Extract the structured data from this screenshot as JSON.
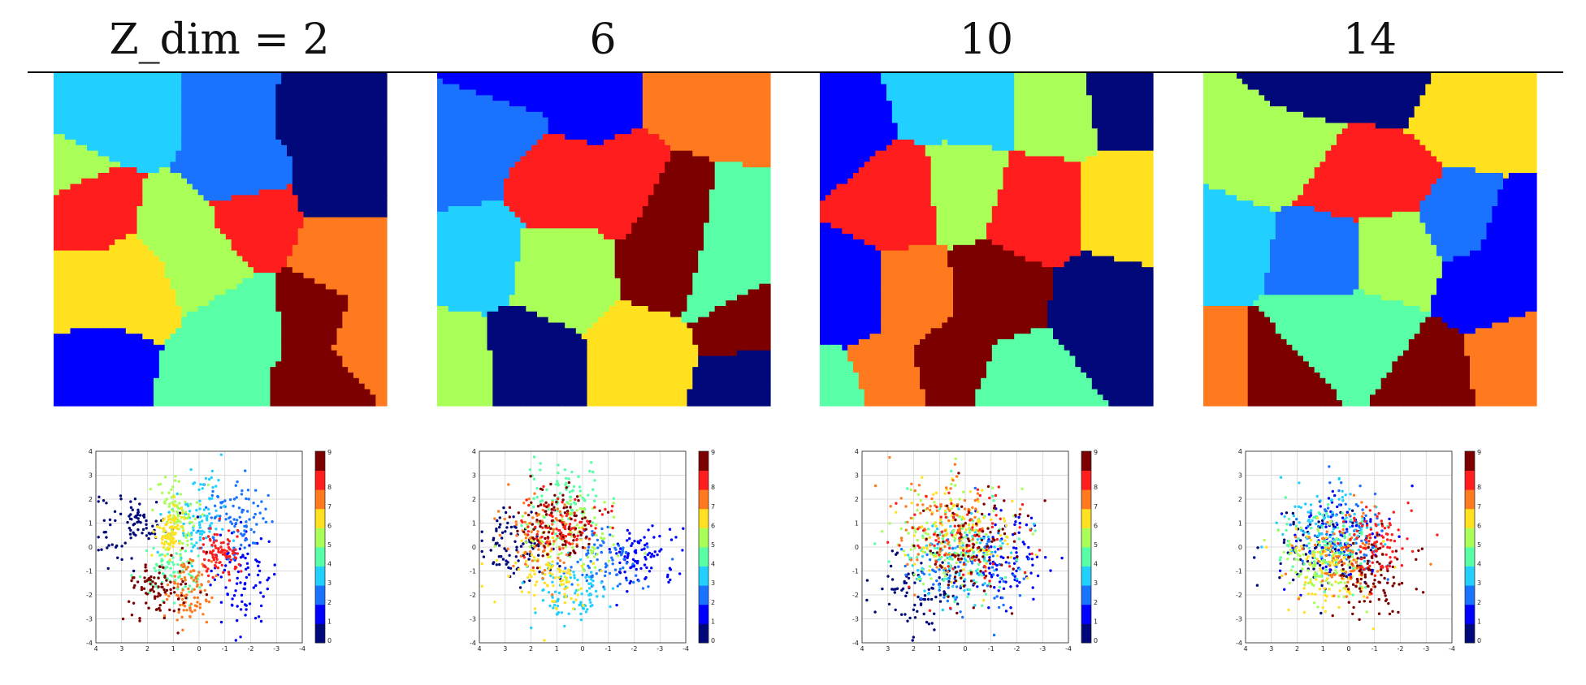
{
  "figure": {
    "column_titles": [
      "Z_dim = 2",
      "6",
      "10",
      "14"
    ]
  },
  "colormap": {
    "name": "jet",
    "classes": [
      "0",
      "1",
      "2",
      "3",
      "4",
      "5",
      "6",
      "7",
      "8",
      "9"
    ],
    "colors": [
      "#00087a",
      "#0000ff",
      "#1a73ff",
      "#22d0ff",
      "#58ffa6",
      "#a9ff57",
      "#ffe11f",
      "#ff7a1e",
      "#ff1d1d",
      "#7d0000"
    ]
  },
  "chart_data": [
    {
      "type": "scatter",
      "panel": "Z_dim = 2",
      "xlim": [
        4,
        -4
      ],
      "ylim": [
        -4,
        4
      ],
      "xticks": [
        "4",
        "3",
        "2",
        "1",
        "0",
        "-1",
        "-2",
        "-3",
        "-4"
      ],
      "yticks": [
        "4",
        "3",
        "2",
        "1",
        "0",
        "-1",
        "-2",
        "-3",
        "-4"
      ],
      "colorbar_ticks": [
        "0",
        "1",
        "2",
        "3",
        "4",
        "5",
        "6",
        "7",
        "8",
        "9"
      ],
      "grid": true,
      "clusters": [
        {
          "class": 0,
          "cx": 2.5,
          "cy": 1.0,
          "sx": 0.7,
          "sy": 0.7
        },
        {
          "class": 1,
          "cx": -1.7,
          "cy": -1.2,
          "sx": 0.6,
          "sy": 1.0
        },
        {
          "class": 2,
          "cx": -1.4,
          "cy": 1.1,
          "sx": 0.7,
          "sy": 0.7
        },
        {
          "class": 3,
          "cx": 0.1,
          "cy": 1.4,
          "sx": 0.5,
          "sy": 0.9
        },
        {
          "class": 4,
          "cx": 1.0,
          "cy": -1.1,
          "sx": 0.6,
          "sy": 0.6
        },
        {
          "class": 5,
          "cx": 0.8,
          "cy": 1.4,
          "sx": 0.4,
          "sy": 0.9
        },
        {
          "class": 6,
          "cx": 1.1,
          "cy": 0.7,
          "sx": 0.25,
          "sy": 0.5
        },
        {
          "class": 7,
          "cx": 0.4,
          "cy": -1.8,
          "sx": 0.5,
          "sy": 0.8
        },
        {
          "class": 8,
          "cx": -0.8,
          "cy": -0.4,
          "sx": 0.4,
          "sy": 0.5
        },
        {
          "class": 9,
          "cx": 1.6,
          "cy": -1.8,
          "sx": 0.6,
          "sy": 0.6
        }
      ]
    },
    {
      "type": "scatter",
      "panel": "6",
      "xlim": [
        4,
        -4
      ],
      "ylim": [
        -4,
        4
      ],
      "xticks": [
        "4",
        "3",
        "2",
        "1",
        "0",
        "-1",
        "-2",
        "-3",
        "-4"
      ],
      "yticks": [
        "4",
        "3",
        "2",
        "1",
        "0",
        "-1",
        "-2",
        "-3",
        "-4"
      ],
      "colorbar_ticks": [
        "0",
        "1",
        "2",
        "3",
        "4",
        "5",
        "6",
        "7",
        "8",
        "9"
      ],
      "grid": true,
      "clusters": [
        {
          "class": 0,
          "cx": 2.6,
          "cy": 0.0,
          "sx": 0.8,
          "sy": 0.7
        },
        {
          "class": 1,
          "cx": -2.2,
          "cy": -0.3,
          "sx": 0.7,
          "sy": 0.6
        },
        {
          "class": 2,
          "cx": -1.0,
          "cy": -0.6,
          "sx": 0.8,
          "sy": 0.7
        },
        {
          "class": 3,
          "cx": 0.4,
          "cy": -1.9,
          "sx": 0.8,
          "sy": 0.7
        },
        {
          "class": 4,
          "cx": 0.8,
          "cy": 2.0,
          "sx": 0.8,
          "sy": 0.7
        },
        {
          "class": 5,
          "cx": 0.4,
          "cy": 0.4,
          "sx": 1.0,
          "sy": 1.0
        },
        {
          "class": 6,
          "cx": 1.2,
          "cy": -1.2,
          "sx": 0.8,
          "sy": 0.8
        },
        {
          "class": 7,
          "cx": 1.6,
          "cy": 0.6,
          "sx": 0.8,
          "sy": 0.8
        },
        {
          "class": 8,
          "cx": 0.8,
          "cy": 0.9,
          "sx": 0.8,
          "sy": 0.6
        },
        {
          "class": 9,
          "cx": 1.0,
          "cy": 1.1,
          "sx": 0.8,
          "sy": 0.7
        }
      ]
    },
    {
      "type": "scatter",
      "panel": "10",
      "xlim": [
        4,
        -4
      ],
      "ylim": [
        -4,
        4
      ],
      "xticks": [
        "4",
        "3",
        "2",
        "1",
        "0",
        "-1",
        "-2",
        "-3",
        "-4"
      ],
      "yticks": [
        "4",
        "3",
        "2",
        "1",
        "0",
        "-1",
        "-2",
        "-3",
        "-4"
      ],
      "colorbar_ticks": [
        "0",
        "1",
        "2",
        "3",
        "4",
        "5",
        "6",
        "7",
        "8",
        "9"
      ],
      "grid": true,
      "clusters": [
        {
          "class": 0,
          "cx": 1.8,
          "cy": -1.8,
          "sx": 0.9,
          "sy": 0.8
        },
        {
          "class": 1,
          "cx": -1.6,
          "cy": -0.5,
          "sx": 0.8,
          "sy": 1.0
        },
        {
          "class": 2,
          "cx": 0.2,
          "cy": -1.0,
          "sx": 1.1,
          "sy": 1.0
        },
        {
          "class": 3,
          "cx": 0.3,
          "cy": -0.4,
          "sx": 1.1,
          "sy": 1.0
        },
        {
          "class": 4,
          "cx": 0.3,
          "cy": 0.0,
          "sx": 1.1,
          "sy": 1.0
        },
        {
          "class": 5,
          "cx": 0.6,
          "cy": 0.4,
          "sx": 1.1,
          "sy": 1.0
        },
        {
          "class": 6,
          "cx": 0.0,
          "cy": 0.6,
          "sx": 1.1,
          "sy": 1.0
        },
        {
          "class": 7,
          "cx": 0.7,
          "cy": 1.0,
          "sx": 1.0,
          "sy": 1.0
        },
        {
          "class": 8,
          "cx": 0.0,
          "cy": 0.3,
          "sx": 1.1,
          "sy": 1.1
        },
        {
          "class": 9,
          "cx": -0.3,
          "cy": 0.0,
          "sx": 1.0,
          "sy": 1.1
        }
      ]
    },
    {
      "type": "scatter",
      "panel": "14",
      "xlim": [
        4,
        -4
      ],
      "ylim": [
        -4,
        4
      ],
      "xticks": [
        "4",
        "3",
        "2",
        "1",
        "0",
        "-1",
        "-2",
        "-3",
        "-4"
      ],
      "yticks": [
        "4",
        "3",
        "2",
        "1",
        "0",
        "-1",
        "-2",
        "-3",
        "-4"
      ],
      "colorbar_ticks": [
        "0",
        "1",
        "2",
        "3",
        "4",
        "5",
        "6",
        "7",
        "8",
        "9"
      ],
      "grid": true,
      "clusters": [
        {
          "class": 0,
          "cx": 1.2,
          "cy": -0.2,
          "sx": 1.0,
          "sy": 1.0
        },
        {
          "class": 1,
          "cx": 0.4,
          "cy": 0.4,
          "sx": 1.0,
          "sy": 1.0
        },
        {
          "class": 2,
          "cx": 0.2,
          "cy": 0.7,
          "sx": 1.0,
          "sy": 1.0
        },
        {
          "class": 3,
          "cx": 0.8,
          "cy": 1.0,
          "sx": 1.0,
          "sy": 0.9
        },
        {
          "class": 4,
          "cx": 0.6,
          "cy": 0.0,
          "sx": 0.9,
          "sy": 0.9
        },
        {
          "class": 5,
          "cx": 1.0,
          "cy": -0.8,
          "sx": 0.9,
          "sy": 0.8
        },
        {
          "class": 6,
          "cx": 0.8,
          "cy": -0.9,
          "sx": 0.9,
          "sy": 0.8
        },
        {
          "class": 7,
          "cx": 0.0,
          "cy": -0.4,
          "sx": 1.0,
          "sy": 0.9
        },
        {
          "class": 8,
          "cx": -1.2,
          "cy": 0.2,
          "sx": 0.7,
          "sy": 0.8
        },
        {
          "class": 9,
          "cx": -1.0,
          "cy": -1.2,
          "sx": 0.8,
          "sy": 0.8
        }
      ]
    }
  ],
  "decision_maps": [
    {
      "panel": "Z_dim = 2",
      "regions": [
        {
          "class": 3,
          "seeds": [
            [
              0.25,
              0.1
            ],
            [
              0.08,
              0.15
            ]
          ]
        },
        {
          "class": 2,
          "seeds": [
            [
              0.52,
              0.1
            ],
            [
              0.55,
              0.3
            ]
          ]
        },
        {
          "class": 0,
          "seeds": [
            [
              0.82,
              0.12
            ],
            [
              0.88,
              0.32
            ]
          ]
        },
        {
          "class": 5,
          "seeds": [
            [
              0.03,
              0.25
            ],
            [
              0.45,
              0.55
            ],
            [
              0.4,
              0.48
            ]
          ]
        },
        {
          "class": 8,
          "seeds": [
            [
              0.1,
              0.42
            ],
            [
              0.58,
              0.44
            ]
          ]
        },
        {
          "class": 6,
          "seeds": [
            [
              0.22,
              0.63
            ],
            [
              0.1,
              0.66
            ]
          ]
        },
        {
          "class": 7,
          "seeds": [
            [
              0.88,
              0.55
            ],
            [
              0.93,
              0.8
            ]
          ]
        },
        {
          "class": 9,
          "seeds": [
            [
              0.78,
              0.75
            ],
            [
              0.79,
              0.92
            ]
          ]
        },
        {
          "class": 4,
          "seeds": [
            [
              0.58,
              0.77
            ],
            [
              0.5,
              0.95
            ]
          ]
        },
        {
          "class": 1,
          "seeds": [
            [
              0.12,
              0.88
            ]
          ]
        }
      ]
    },
    {
      "panel": "6",
      "regions": [
        {
          "class": 1,
          "seeds": [
            [
              0.22,
              0.06
            ],
            [
              0.45,
              0.08
            ]
          ]
        },
        {
          "class": 2,
          "seeds": [
            [
              0.05,
              0.25
            ],
            [
              0.2,
              0.12
            ]
          ]
        },
        {
          "class": 7,
          "seeds": [
            [
              0.92,
              0.1
            ],
            [
              0.78,
              0.06
            ]
          ]
        },
        {
          "class": 8,
          "seeds": [
            [
              0.38,
              0.32
            ],
            [
              0.55,
              0.33
            ]
          ]
        },
        {
          "class": 9,
          "seeds": [
            [
              0.72,
              0.42
            ],
            [
              0.7,
              0.58
            ],
            [
              0.92,
              0.75
            ]
          ]
        },
        {
          "class": 4,
          "seeds": [
            [
              0.9,
              0.45
            ],
            [
              0.85,
              0.62
            ]
          ]
        },
        {
          "class": 3,
          "seeds": [
            [
              0.1,
              0.55
            ]
          ]
        },
        {
          "class": 5,
          "seeds": [
            [
              0.38,
              0.6
            ],
            [
              0.05,
              0.88
            ]
          ]
        },
        {
          "class": 0,
          "seeds": [
            [
              0.27,
              0.87
            ],
            [
              0.93,
              0.93
            ]
          ]
        },
        {
          "class": 6,
          "seeds": [
            [
              0.62,
              0.85
            ]
          ]
        }
      ]
    },
    {
      "panel": "10",
      "regions": [
        {
          "class": 1,
          "seeds": [
            [
              0.08,
              0.15
            ],
            [
              0.08,
              0.7
            ]
          ]
        },
        {
          "class": 3,
          "seeds": [
            [
              0.45,
              0.1
            ],
            [
              0.35,
              0.08
            ]
          ]
        },
        {
          "class": 5,
          "seeds": [
            [
              0.42,
              0.33
            ],
            [
              0.7,
              0.1
            ]
          ]
        },
        {
          "class": 0,
          "seeds": [
            [
              0.92,
              0.06
            ],
            [
              0.86,
              0.72
            ]
          ]
        },
        {
          "class": 8,
          "seeds": [
            [
              0.65,
              0.4
            ],
            [
              0.25,
              0.35
            ]
          ]
        },
        {
          "class": 6,
          "seeds": [
            [
              0.93,
              0.4
            ]
          ]
        },
        {
          "class": 7,
          "seeds": [
            [
              0.28,
              0.7
            ],
            [
              0.18,
              0.9
            ]
          ]
        },
        {
          "class": 9,
          "seeds": [
            [
              0.52,
              0.68
            ],
            [
              0.4,
              0.85
            ]
          ]
        },
        {
          "class": 4,
          "seeds": [
            [
              0.6,
              0.92
            ],
            [
              0.05,
              0.95
            ]
          ]
        }
      ]
    },
    {
      "panel": "14",
      "regions": [
        {
          "class": 0,
          "seeds": [
            [
              0.35,
              0.04
            ],
            [
              0.6,
              0.04
            ]
          ]
        },
        {
          "class": 6,
          "seeds": [
            [
              0.85,
              0.13
            ],
            [
              0.72,
              0.1
            ]
          ]
        },
        {
          "class": 5,
          "seeds": [
            [
              0.15,
              0.25
            ],
            [
              0.3,
              0.22
            ]
          ]
        },
        {
          "class": 8,
          "seeds": [
            [
              0.55,
              0.3
            ],
            [
              0.42,
              0.3
            ]
          ]
        },
        {
          "class": 2,
          "seeds": [
            [
              0.78,
              0.45
            ],
            [
              0.35,
              0.55
            ]
          ]
        },
        {
          "class": 3,
          "seeds": [
            [
              0.06,
              0.5
            ]
          ]
        },
        {
          "class": 1,
          "seeds": [
            [
              0.92,
              0.5
            ],
            [
              0.85,
              0.62
            ]
          ]
        },
        {
          "class": 5,
          "seeds": [
            [
              0.58,
              0.55
            ]
          ]
        },
        {
          "class": 4,
          "seeds": [
            [
              0.5,
              0.8
            ],
            [
              0.35,
              0.78
            ]
          ]
        },
        {
          "class": 7,
          "seeds": [
            [
              0.05,
              0.9
            ],
            [
              0.93,
              0.88
            ]
          ]
        },
        {
          "class": 9,
          "seeds": [
            [
              0.22,
              0.9
            ],
            [
              0.67,
              0.92
            ]
          ]
        }
      ]
    }
  ]
}
